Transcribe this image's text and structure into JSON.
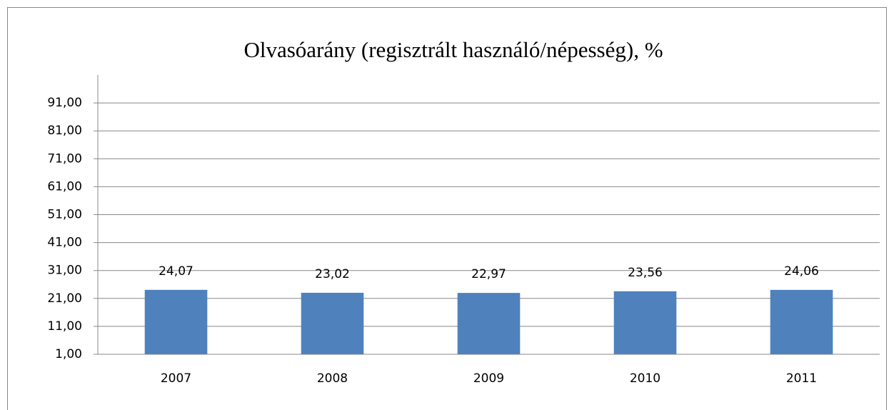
{
  "chart_data": {
    "type": "bar",
    "title": "Olvasóarány (regisztrált használó/népesség), %",
    "categories": [
      "2007",
      "2008",
      "2009",
      "2010",
      "2011"
    ],
    "values": [
      24.07,
      23.02,
      22.97,
      23.56,
      24.06
    ],
    "value_labels": [
      "24,07",
      "23,02",
      "22,97",
      "23,56",
      "24,06"
    ],
    "color": "#4f81bd",
    "ylim": [
      1,
      101
    ],
    "yticks": [
      {
        "value": 1,
        "label": "1,00"
      },
      {
        "value": 11,
        "label": "11,00"
      },
      {
        "value": 21,
        "label": "21,00"
      },
      {
        "value": 31,
        "label": "31,00"
      },
      {
        "value": 41,
        "label": "41,00"
      },
      {
        "value": 51,
        "label": "51,00"
      },
      {
        "value": 61,
        "label": "61,00"
      },
      {
        "value": 71,
        "label": "71,00"
      },
      {
        "value": 81,
        "label": "81,00"
      },
      {
        "value": 91,
        "label": "91,00"
      }
    ],
    "grid": true
  }
}
